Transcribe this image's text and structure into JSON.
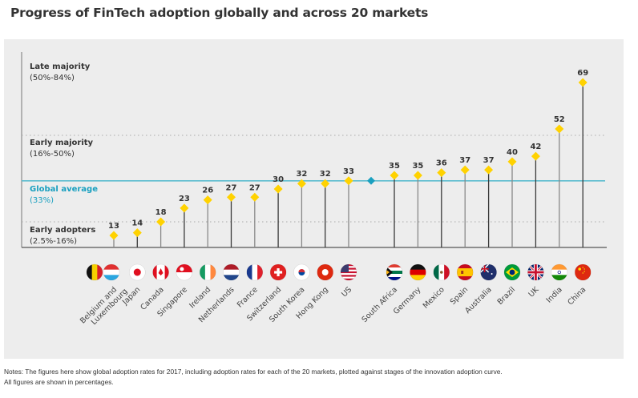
{
  "title": "Progress of FinTech adoption globally and across 20 markets",
  "notes": {
    "line1": "Notes: The figures here show global adoption rates for 2017, including adoption rates for each of the 20 markets, plotted against stages of the innovation adoption curve.",
    "line2": "All figures are shown in percentages."
  },
  "colors": {
    "marker": "#ffd200",
    "global_average": "#1aa0c0",
    "global_line": "#5bbccf",
    "stem": "#4d4d4d",
    "label_text": "#333333",
    "panel": "#ededed"
  },
  "chart_data": {
    "type": "scatter",
    "title": "Progress of FinTech adoption globally and across 20 markets",
    "xlabel": "",
    "ylabel": "",
    "unit": "%",
    "categories": [
      "Belgium and Luxembourg",
      "Japan",
      "Canada",
      "Singapore",
      "Ireland",
      "Netherlands",
      "France",
      "Switzerland",
      "South Korea",
      "Hong Kong",
      "US",
      "South Africa",
      "Germany",
      "Mexico",
      "Spain",
      "Australia",
      "Brazil",
      "UK",
      "India",
      "China"
    ],
    "values": [
      13,
      14,
      18,
      23,
      26,
      27,
      27,
      30,
      32,
      32,
      33,
      35,
      35,
      36,
      37,
      37,
      40,
      42,
      52,
      69
    ],
    "value_labels": [
      "13",
      "14",
      "18",
      "23",
      "26",
      "27",
      "27",
      "30",
      "32",
      "32",
      "33",
      "35",
      "35",
      "36",
      "37",
      "37",
      "40",
      "42",
      "52",
      "69"
    ],
    "flags": [
      [
        "belgium-flag",
        "luxembourg-flag"
      ],
      [
        "japan-flag"
      ],
      [
        "canada-flag"
      ],
      [
        "singapore-flag"
      ],
      [
        "ireland-flag"
      ],
      [
        "netherlands-flag"
      ],
      [
        "france-flag"
      ],
      [
        "switzerland-flag"
      ],
      [
        "south-korea-flag"
      ],
      [
        "hong-kong-flag"
      ],
      [
        "us-flag"
      ],
      [
        "south-africa-flag"
      ],
      [
        "germany-flag"
      ],
      [
        "mexico-flag"
      ],
      [
        "spain-flag"
      ],
      [
        "australia-flag"
      ],
      [
        "brazil-flag"
      ],
      [
        "uk-flag"
      ],
      [
        "india-flag"
      ],
      [
        "china-flag"
      ]
    ],
    "global_average": 33,
    "ylim": [
      9,
      72
    ],
    "stages": [
      {
        "name": "Late majority",
        "range": "(50%-84%)",
        "from": 50
      },
      {
        "name": "Early majority",
        "range": "(16%-50%)",
        "from": 18
      },
      {
        "name": "Global average",
        "range": "(33%)",
        "from": 33
      },
      {
        "name": "Early adopters",
        "range": "(2.5%-16%)",
        "from": 9
      }
    ],
    "grid": false,
    "legend": "none"
  }
}
